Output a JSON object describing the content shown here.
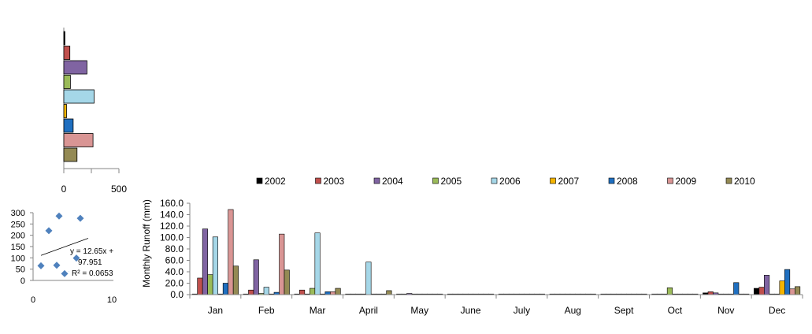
{
  "colors": {
    "2002": "#000000",
    "2003": "#c0504d",
    "2004": "#8064a2",
    "2005": "#9bbb59",
    "2006": "#a5d7e8",
    "2007": "#f4b400",
    "2008": "#1f6fc0",
    "2009": "#d99594",
    "2010": "#948a54",
    "marker": "#4f81bd",
    "trendline": "#000000"
  },
  "chart_data": [
    {
      "type": "bar",
      "orientation": "horizontal",
      "categories": [
        "2002",
        "2003",
        "2004",
        "2005",
        "2006",
        "2007",
        "2008",
        "2009",
        "2010"
      ],
      "values": [
        10,
        55,
        210,
        60,
        275,
        25,
        85,
        265,
        120
      ],
      "xlim": [
        0,
        500
      ],
      "xticks": [
        "0",
        "500"
      ]
    },
    {
      "type": "scatter",
      "x": [
        1,
        2,
        3,
        3.3,
        4,
        5,
        5.5,
        6
      ],
      "y": [
        65,
        220,
        67,
        285,
        30,
        40,
        99,
        275
      ],
      "xlim": [
        0,
        10
      ],
      "ylim": [
        0,
        300
      ],
      "xticks": [
        "0",
        "10"
      ],
      "yticks": [
        "0",
        "50",
        "100",
        "150",
        "200",
        "250",
        "300"
      ],
      "trendline": {
        "slope": 12.65,
        "intercept": 97.951
      },
      "annotation": [
        "y = 12.65x +",
        "97.951",
        "R² = 0.0653"
      ]
    },
    {
      "type": "bar",
      "ylabel": "Monthly  Runoff (mm)",
      "ylim": [
        0,
        160
      ],
      "yticks": [
        "0.0",
        "20.0",
        "40.0",
        "60.0",
        "80.0",
        "100.0",
        "120.0",
        "140.0",
        "160.0"
      ],
      "categories": [
        "Jan",
        "Feb",
        "Mar",
        "April",
        "May",
        "June",
        "July",
        "Aug",
        "Sept",
        "Oct",
        "Nov",
        "Dec"
      ],
      "series": [
        {
          "name": "2002",
          "values": [
            1,
            1,
            1,
            1,
            1,
            1,
            1,
            1,
            1,
            1,
            3,
            11
          ]
        },
        {
          "name": "2003",
          "values": [
            29,
            8,
            8,
            1,
            1,
            1,
            1,
            1,
            1,
            1,
            5,
            13
          ]
        },
        {
          "name": "2004",
          "values": [
            115,
            61,
            1,
            1,
            2,
            1,
            1,
            1,
            1,
            1,
            3,
            34
          ]
        },
        {
          "name": "2005",
          "values": [
            35,
            2,
            11,
            1,
            1,
            1,
            1,
            1,
            1,
            12,
            1,
            1
          ]
        },
        {
          "name": "2006",
          "values": [
            101,
            13,
            108,
            57,
            1,
            1,
            1,
            1,
            1,
            1,
            1,
            1
          ]
        },
        {
          "name": "2007",
          "values": [
            1,
            1,
            1,
            1,
            1,
            1,
            1,
            1,
            1,
            1,
            1,
            24
          ]
        },
        {
          "name": "2008",
          "values": [
            20,
            4,
            5,
            1,
            1,
            1,
            1,
            1,
            1,
            1,
            21,
            44
          ]
        },
        {
          "name": "2009",
          "values": [
            149,
            106,
            5,
            1,
            1,
            1,
            1,
            1,
            1,
            1,
            1,
            10
          ]
        },
        {
          "name": "2010",
          "values": [
            50,
            43,
            11,
            7,
            1,
            1,
            1,
            1,
            1,
            1,
            1,
            14
          ]
        }
      ]
    }
  ]
}
